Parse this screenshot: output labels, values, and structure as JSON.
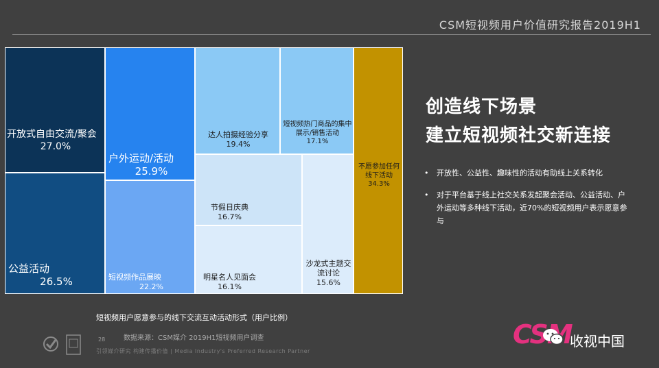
{
  "report_title": "CSM短视频用户价值研究报告2019H1",
  "headline": [
    "创造线下场景",
    "建立短视频社交新连接"
  ],
  "bullets": [
    "开放性、公益性、趣味性的活动有助线上关系转化",
    "对于平台基于线上社交关系发起聚会活动、公益活动、户外运动等多种线下活动，近70%的短视频用户表示愿意参与"
  ],
  "bullet_mark": "•",
  "caption": "短视频用户愿意参与的线下交流互动活动形式（用户比例）",
  "source": "数据来源：CSM媒介 2019H1短视频用户调查",
  "page_number": "28",
  "footer_tagline": "引领媒介研究  构建传播价值 | Media Industry's Preferred Research Partner",
  "logo_text": "CSM",
  "brand_name": "收视中国",
  "chart_data": {
    "type": "treemap",
    "title": "",
    "items": [
      {
        "label": "开放式自由交流/聚会",
        "value": 27.0,
        "value_label": "27.0%",
        "color": "#0c3357"
      },
      {
        "label": "公益活动",
        "value": 26.5,
        "value_label": "26.5%",
        "color": "#114d82"
      },
      {
        "label": "户外运动/活动",
        "value": 25.9,
        "value_label": "25.9%",
        "color": "#2683ef"
      },
      {
        "label": "短视频作品展映",
        "value": 22.2,
        "value_label": "22.2%",
        "color": "#6ba7f3"
      },
      {
        "label": "达人拍摄经验分享",
        "value": 19.4,
        "value_label": "19.4%",
        "color": "#8bc9f5"
      },
      {
        "label": "短视频热门商品的集中展示/销售活动",
        "value": 17.1,
        "value_label": "17.1%",
        "color": "#8bc9f5"
      },
      {
        "label": "节假日庆典",
        "value": 16.7,
        "value_label": "16.7%",
        "color": "#cde4f8"
      },
      {
        "label": "明星名人见面会",
        "value": 16.1,
        "value_label": "16.1%",
        "color": "#dcecfb"
      },
      {
        "label": "沙龙式主题交流讨论",
        "value": 15.6,
        "value_label": "15.6%",
        "color": "#dcecfb"
      },
      {
        "label": "不愿参加任何线下活动",
        "value": 34.3,
        "value_label": "34.3%",
        "color": "#c29200"
      }
    ]
  }
}
